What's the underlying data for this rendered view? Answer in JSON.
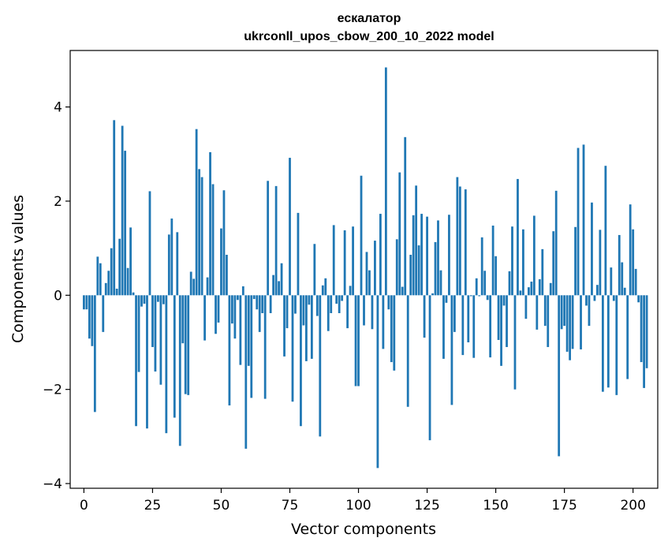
{
  "chart_data": {
    "type": "bar",
    "title": "ескалатор",
    "subtitle": "ukrconll_upos_cbow_200_10_2022 model",
    "xlabel": "Vector components",
    "ylabel": "Components values",
    "xlim": [
      -5,
      209
    ],
    "ylim": [
      -4.1,
      5.2
    ],
    "xticks": [
      0,
      25,
      50,
      75,
      100,
      125,
      150,
      175,
      200
    ],
    "yticks": [
      -4,
      -2,
      0,
      2,
      4
    ],
    "ytick_labels": [
      "−4",
      "−2",
      "0",
      "2",
      "4"
    ],
    "grid": false,
    "color": "#1f77b4",
    "values": [
      -0.3,
      -0.3,
      -0.92,
      -1.08,
      -2.48,
      0.82,
      0.68,
      -0.78,
      0.26,
      0.52,
      1.0,
      3.72,
      0.14,
      1.2,
      3.6,
      3.07,
      0.58,
      1.44,
      0.06,
      -2.78,
      -1.63,
      -0.24,
      -0.18,
      -2.83,
      2.21,
      -1.1,
      -1.62,
      -0.14,
      -1.9,
      -0.19,
      -2.93,
      1.29,
      1.63,
      -2.6,
      1.34,
      -3.2,
      -1.02,
      -2.1,
      -2.12,
      0.5,
      0.35,
      3.53,
      2.68,
      2.51,
      -0.96,
      0.38,
      3.04,
      2.36,
      -0.82,
      -0.58,
      1.42,
      2.23,
      0.86,
      -2.34,
      -0.6,
      -0.92,
      -0.1,
      -1.48,
      0.19,
      -3.26,
      -1.5,
      -2.18,
      -0.08,
      -0.3,
      -0.78,
      -0.38,
      -2.2,
      2.43,
      -0.38,
      0.43,
      2.32,
      0.3,
      0.68,
      -1.3,
      -0.7,
      2.92,
      -2.26,
      -0.39,
      1.75,
      -2.78,
      -0.64,
      -1.4,
      -0.2,
      -1.35,
      1.09,
      -0.44,
      -3.0,
      0.21,
      0.36,
      -0.76,
      -0.38,
      1.49,
      -0.18,
      -0.38,
      -0.12,
      1.38,
      -0.7,
      0.2,
      1.46,
      -1.93,
      -1.93,
      2.54,
      -0.64,
      0.92,
      0.53,
      -0.72,
      1.16,
      -3.67,
      1.73,
      -1.14,
      4.84,
      -0.3,
      -1.42,
      -1.6,
      1.19,
      2.61,
      0.18,
      3.36,
      -2.37,
      0.86,
      1.7,
      2.33,
      1.06,
      1.73,
      -0.9,
      1.67,
      -3.08,
      0.04,
      1.13,
      1.59,
      0.53,
      -1.35,
      -0.16,
      1.71,
      -2.33,
      -0.78,
      2.51,
      2.31,
      -1.27,
      2.25,
      -1.0,
      -0.02,
      -1.33,
      0.36,
      -0.02,
      1.23,
      0.52,
      -0.1,
      -1.32,
      1.48,
      0.83,
      -0.95,
      -1.5,
      -0.22,
      -1.1,
      0.51,
      1.46,
      -2.0,
      2.47,
      0.1,
      1.4,
      -0.5,
      0.17,
      0.29,
      1.69,
      -0.73,
      0.34,
      0.98,
      -0.65,
      -1.1,
      0.26,
      1.36,
      2.22,
      -3.42,
      -0.72,
      -0.65,
      -1.2,
      -1.38,
      -1.14,
      1.45,
      3.13,
      -1.15,
      3.2,
      -0.22,
      -0.65,
      1.97,
      -0.12,
      0.22,
      1.39,
      -2.05,
      2.75,
      -1.96,
      0.59,
      -0.12,
      -2.12,
      1.28,
      0.7,
      0.16,
      -1.78,
      1.93,
      1.4,
      0.56,
      -0.15,
      -1.42,
      -1.97,
      -1.55
    ]
  }
}
